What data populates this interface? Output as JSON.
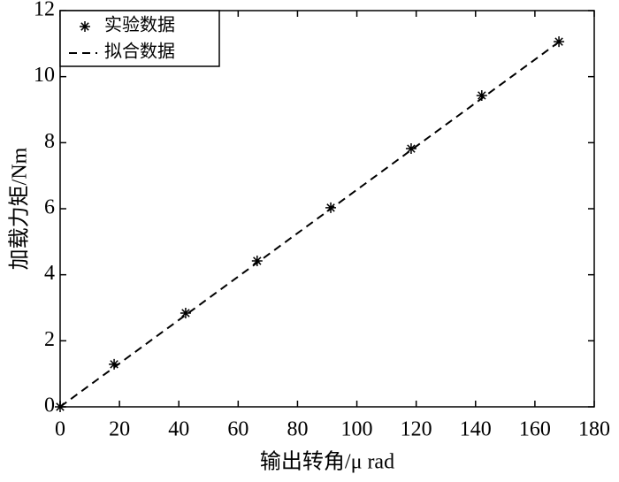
{
  "chart_data": {
    "type": "scatter-line",
    "x_label": "输出转角/μ rad",
    "y_label": "加载力矩/Nm",
    "series": [
      {
        "name": "实验数据",
        "type": "scatter",
        "color": "#000000",
        "x": [
          0,
          18.2,
          42.3,
          66.4,
          91.2,
          118.3,
          142.1,
          168.1
        ],
        "values": [
          0,
          1.29,
          2.84,
          4.42,
          6.03,
          7.82,
          9.43,
          11.06
        ]
      },
      {
        "name": "拟合数据",
        "type": "line",
        "color": "#000000",
        "x": [
          0,
          168.1
        ],
        "values": [
          0,
          11.05
        ]
      }
    ],
    "xlim": [
      0,
      180
    ],
    "xticks": [
      0,
      20,
      40,
      60,
      80,
      100,
      120,
      140,
      160,
      180
    ],
    "ylim": [
      0,
      12
    ],
    "yticks": [
      0,
      2,
      4,
      6,
      8,
      10,
      12
    ],
    "legend": "upper-left"
  }
}
